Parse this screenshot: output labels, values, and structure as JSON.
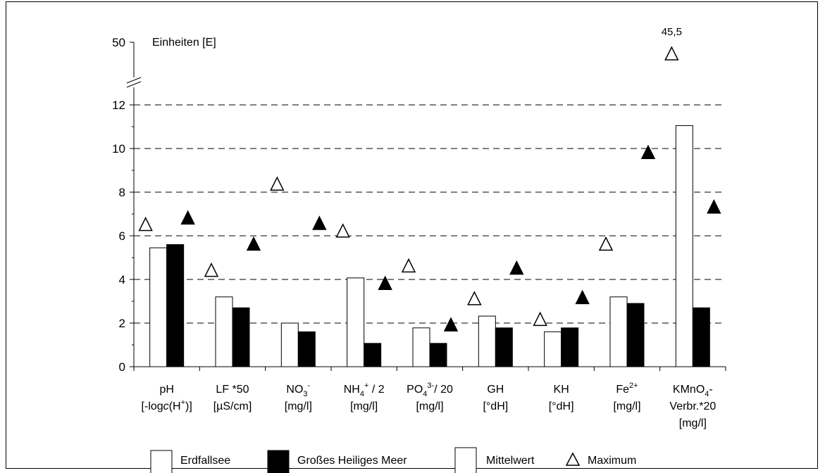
{
  "chart_data": {
    "type": "bar",
    "ylabel": "Einheiten [E]",
    "yticks": [
      "0",
      "2",
      "4",
      "6",
      "8",
      "10",
      "12",
      "50"
    ],
    "ylim": [
      0,
      12
    ],
    "axis_break": true,
    "grid": "dashed horizontal",
    "categories": [
      [
        "pH",
        "[-log{c}(H+)]"
      ],
      [
        "LF *50",
        "[µS/cm]"
      ],
      [
        "NO3-",
        "[mg/l]"
      ],
      [
        "NH4+ / 2",
        "[mg/l]"
      ],
      [
        "PO43-/ 20",
        "[mg/l]"
      ],
      [
        "GH",
        "[°dH]"
      ],
      [
        "KH",
        "[°dH]"
      ],
      [
        "Fe2+",
        "[mg/l]"
      ],
      [
        "KMnO4-",
        "Verbr.*20",
        "[mg/l]"
      ]
    ],
    "series": [
      {
        "name": "Erdfallsee",
        "color": "#ffffff",
        "mean": [
          5.45,
          3.2,
          2.0,
          4.07,
          1.78,
          2.32,
          1.6,
          3.2,
          11.05
        ],
        "max": [
          6.5,
          4.4,
          8.35,
          6.2,
          4.6,
          3.1,
          2.15,
          5.6,
          45.5
        ]
      },
      {
        "name": "Großes Heiliges Meer",
        "color": "#000000",
        "mean": [
          5.6,
          2.7,
          1.6,
          1.07,
          1.07,
          1.78,
          1.78,
          2.9,
          2.7
        ],
        "max": [
          6.8,
          5.6,
          6.55,
          3.8,
          1.9,
          4.5,
          3.15,
          9.8,
          7.3
        ]
      }
    ],
    "annotations": [
      "45,5"
    ],
    "legend": {
      "position": "bottom",
      "items": [
        "Erdfallsee",
        "Großes Heiliges Meer",
        "Mittelwert",
        "Maximum"
      ]
    }
  }
}
